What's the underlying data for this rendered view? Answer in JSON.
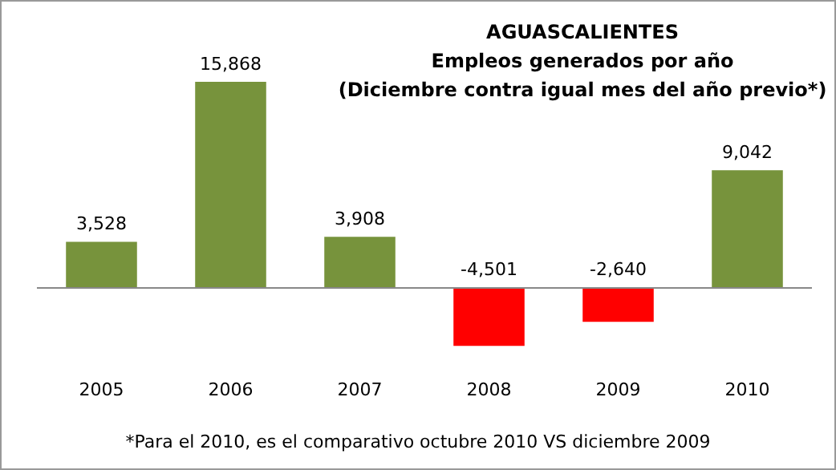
{
  "chart_data": {
    "type": "bar",
    "title": "AGUASCALIENTES",
    "subtitle": "Empleos generados por año",
    "categories": [
      "2005",
      "2006",
      "2007",
      "2008",
      "2009",
      "2010"
    ],
    "values": [
      3528,
      15868,
      3908,
      -4501,
      -2640,
      9042
    ],
    "colors": [
      "#77933c",
      "#77933c",
      "#77933c",
      "#ff0000",
      "#ff0000",
      "#77933c"
    ],
    "value_labels": [
      "3,528",
      "15,868",
      "3,908",
      "-4,501",
      "-2,640",
      "9,042"
    ],
    "annotations": [
      "(Diciembre contra igual mes del año previo*)",
      "*Para el 2010, es el comparativo octubre 2010 VS diciembre 2009"
    ],
    "grid": false,
    "legend": false
  }
}
